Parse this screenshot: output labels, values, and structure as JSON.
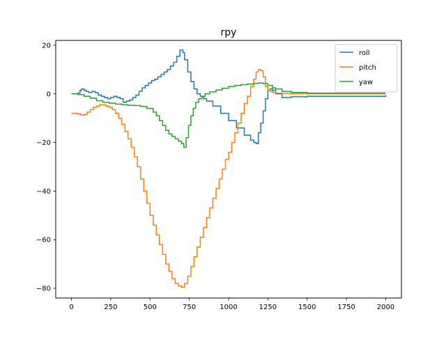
{
  "chart_data": {
    "type": "line",
    "title": "rpy",
    "xlabel": "",
    "ylabel": "",
    "xlim": [
      -100,
      2100
    ],
    "ylim": [
      -84,
      22
    ],
    "xticks": [
      0,
      250,
      500,
      750,
      1000,
      1250,
      1500,
      1750,
      2000
    ],
    "yticks": [
      -80,
      -60,
      -40,
      -20,
      0,
      20
    ],
    "grid": false,
    "legend": "top-right",
    "step": true,
    "series": [
      {
        "name": "roll",
        "color": "#1f77b4",
        "x": [
          0,
          40,
          55,
          65,
          80,
          95,
          110,
          130,
          150,
          170,
          190,
          210,
          230,
          250,
          270,
          290,
          310,
          330,
          350,
          370,
          390,
          410,
          430,
          450,
          470,
          490,
          510,
          530,
          550,
          570,
          590,
          610,
          630,
          650,
          670,
          690,
          710,
          720,
          740,
          760,
          780,
          800,
          820,
          840,
          860,
          900,
          950,
          1000,
          1050,
          1100,
          1140,
          1160,
          1175,
          1190,
          1205,
          1220,
          1235,
          1250,
          1265,
          1280,
          1300,
          1340,
          1400,
          1500,
          2000
        ],
        "y": [
          0,
          0.3,
          1.5,
          2,
          1.5,
          1,
          0.5,
          1,
          0.5,
          -0.5,
          -1,
          -1.5,
          -2,
          -1.5,
          -1,
          -1.5,
          -2,
          -3.5,
          -3,
          -2.5,
          -1.5,
          -0.5,
          1,
          2.5,
          3.5,
          4.5,
          5.5,
          6,
          7,
          8,
          9,
          10,
          11.5,
          13,
          15.5,
          18,
          17,
          14,
          9,
          5,
          2,
          0,
          -1,
          -2,
          -3,
          -5,
          -8,
          -11,
          -14,
          -17,
          -19,
          -20,
          -20.5,
          -16,
          -12,
          -7,
          -2,
          1.5,
          2,
          1.5,
          0,
          -1.5,
          -1.2,
          -1,
          -0.5
        ]
      },
      {
        "name": "pitch",
        "color": "#ff7f0e",
        "x": [
          0,
          40,
          60,
          80,
          100,
          120,
          140,
          160,
          180,
          200,
          220,
          240,
          260,
          280,
          300,
          320,
          340,
          360,
          380,
          400,
          420,
          440,
          460,
          480,
          500,
          520,
          540,
          560,
          580,
          600,
          620,
          640,
          660,
          680,
          700,
          720,
          740,
          760,
          780,
          800,
          820,
          840,
          860,
          880,
          900,
          920,
          940,
          960,
          980,
          1000,
          1020,
          1040,
          1060,
          1080,
          1100,
          1120,
          1140,
          1160,
          1175,
          1190,
          1205,
          1220,
          1235,
          1250,
          1265,
          1280,
          1300,
          1340,
          1400,
          1500,
          2000
        ],
        "y": [
          -8,
          -8.3,
          -8.7,
          -8.5,
          -7.5,
          -6.5,
          -5.5,
          -5,
          -4.5,
          -4.5,
          -5,
          -5.5,
          -6.5,
          -8,
          -10,
          -12.5,
          -15.5,
          -18.5,
          -22,
          -26,
          -30,
          -35,
          -40,
          -45,
          -50,
          -54,
          -58,
          -62,
          -66,
          -70,
          -73,
          -76,
          -78,
          -79,
          -79.5,
          -78,
          -75,
          -71,
          -67,
          -63,
          -59,
          -55,
          -51,
          -47,
          -43,
          -39,
          -35,
          -31,
          -27,
          -24,
          -20,
          -16,
          -12,
          -8,
          -4,
          -1,
          3,
          6,
          9,
          10,
          9.5,
          7,
          3,
          1.5,
          1,
          0.5,
          0.3,
          0.2,
          0.1,
          0,
          0
        ]
      },
      {
        "name": "yaw",
        "color": "#2ca02c",
        "x": [
          0,
          40,
          80,
          120,
          160,
          200,
          240,
          280,
          320,
          360,
          400,
          440,
          480,
          520,
          540,
          560,
          580,
          600,
          620,
          640,
          660,
          680,
          700,
          715,
          730,
          745,
          760,
          775,
          790,
          810,
          830,
          850,
          880,
          920,
          960,
          1000,
          1040,
          1080,
          1120,
          1160,
          1190,
          1220,
          1250,
          1280,
          1300,
          1340,
          1400,
          1500,
          2000
        ],
        "y": [
          0,
          -0.3,
          -1,
          -1.8,
          -2.8,
          -3.5,
          -3.8,
          -4.2,
          -4.5,
          -4.7,
          -4.8,
          -5.2,
          -6,
          -7.5,
          -9,
          -11,
          -13,
          -15,
          -16.5,
          -17.5,
          -18.5,
          -19.5,
          -20.5,
          -22,
          -18,
          -13,
          -9,
          -6,
          -3.5,
          -2,
          -1,
          0,
          0.8,
          1.6,
          2.3,
          3,
          3.5,
          3.8,
          4,
          4.3,
          4.5,
          4.2,
          3.5,
          2.5,
          2,
          1,
          0.6,
          0.3,
          0.3
        ]
      }
    ]
  }
}
